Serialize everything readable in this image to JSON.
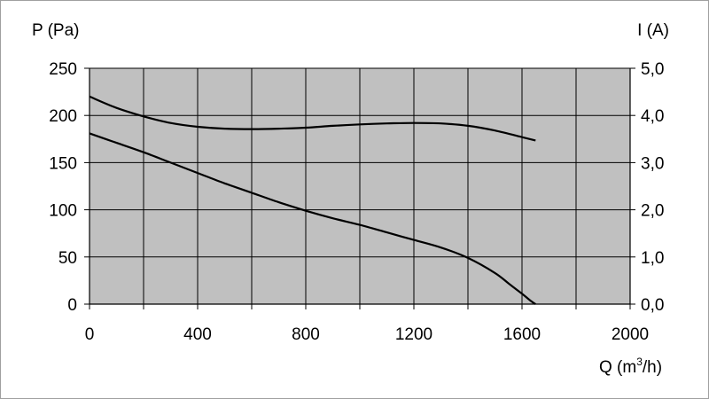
{
  "chart_data": {
    "type": "line",
    "title": "",
    "xlabel": "Q (m3/h)",
    "ylabel_left": "P (Pa)",
    "ylabel_right": "I (A)",
    "xlabel_parts": {
      "pre": "Q (m",
      "sup": "3",
      "post": "/h)"
    },
    "xlim": [
      0,
      2000
    ],
    "ylim_left": [
      0,
      250
    ],
    "ylim_right": [
      0,
      5
    ],
    "x_ticks": [
      "0",
      "400",
      "800",
      "1200",
      "1600",
      "2000"
    ],
    "y_left_ticks": [
      "250",
      "200",
      "150",
      "100",
      "50",
      "0"
    ],
    "y_right_ticks": [
      "5,0",
      "4,0",
      "3,0",
      "2,0",
      "1,0",
      "0,0"
    ],
    "grid": true,
    "plot_background": "#c0c0c0",
    "line_color": "#000000",
    "series": [
      {
        "axis": "left",
        "x": [
          0,
          100,
          200,
          300,
          400,
          500,
          600,
          700,
          800,
          900,
          1000,
          1100,
          1200,
          1300,
          1400,
          1500,
          1550,
          1600,
          1630,
          1650
        ],
        "y": [
          181,
          171,
          161,
          150,
          139,
          128,
          118,
          108,
          99,
          91,
          84,
          76,
          68,
          60,
          49,
          33,
          22,
          11,
          4,
          0
        ]
      },
      {
        "axis": "right",
        "x": [
          0,
          100,
          200,
          300,
          400,
          500,
          600,
          700,
          800,
          900,
          1000,
          1100,
          1200,
          1300,
          1400,
          1500,
          1600,
          1650
        ],
        "y": [
          4.4,
          4.16,
          3.98,
          3.84,
          3.76,
          3.72,
          3.71,
          3.72,
          3.74,
          3.78,
          3.81,
          3.83,
          3.84,
          3.83,
          3.78,
          3.68,
          3.54,
          3.47
        ]
      }
    ]
  }
}
